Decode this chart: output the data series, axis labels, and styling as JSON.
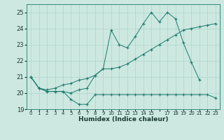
{
  "xlabel": "Humidex (Indice chaleur)",
  "bg_color": "#cce8e0",
  "grid_color": "#aed4cc",
  "line_color": "#1a7a6e",
  "ylim": [
    19,
    25.5
  ],
  "xlim": [
    -0.5,
    23.5
  ],
  "series": {
    "line1": [
      21.0,
      20.3,
      20.1,
      20.1,
      20.1,
      19.6,
      19.3,
      19.3,
      19.9,
      19.9,
      19.9,
      19.9,
      19.9,
      19.9,
      19.9,
      19.9,
      19.9,
      19.9,
      19.9,
      19.9,
      19.9,
      19.9,
      19.9,
      19.7
    ],
    "line2": [
      21.0,
      20.3,
      20.1,
      20.1,
      20.1,
      20.0,
      20.2,
      20.3,
      21.1,
      21.5,
      23.9,
      23.0,
      22.8,
      23.5,
      24.3,
      25.0,
      24.4,
      25.0,
      24.6,
      23.1,
      21.9,
      20.8,
      null,
      null
    ],
    "line3": [
      21.0,
      20.3,
      20.2,
      20.3,
      20.5,
      20.6,
      20.8,
      20.9,
      21.1,
      21.5,
      21.5,
      21.6,
      21.8,
      22.1,
      22.4,
      22.7,
      23.0,
      23.3,
      23.6,
      23.9,
      24.0,
      24.1,
      24.2,
      24.3
    ]
  },
  "yticks": [
    19,
    20,
    21,
    22,
    23,
    24,
    25
  ],
  "xtick_labels": [
    "0",
    "1",
    "2",
    "3",
    "4",
    "5",
    "6",
    "7",
    "8",
    "9",
    "10",
    "11",
    "12",
    "13",
    "14",
    "15",
    "",
    "17",
    "18",
    "19",
    "20",
    "21",
    "22",
    "23"
  ]
}
